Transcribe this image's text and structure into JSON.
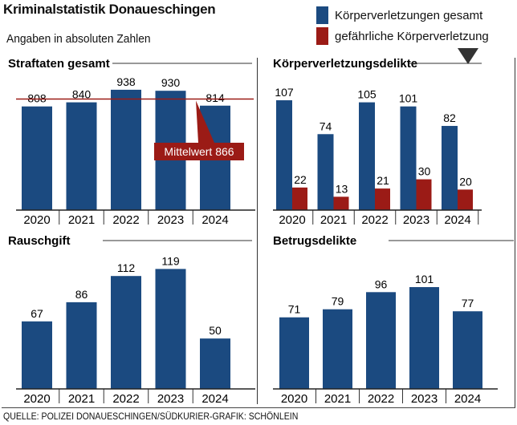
{
  "title": "Kriminalstatistik Donaueschingen",
  "subtitle": "Angaben in absoluten Zahlen",
  "legend": [
    {
      "label": "Körperverletzungen gesamt",
      "color": "#1b4a80"
    },
    {
      "label": "gefährliche Körperverletzung",
      "color": "#9b1b16"
    }
  ],
  "source": "QUELLE: POLIZEI DONAUESCHINGEN/SÜDKURIER-GRAFIK: SCHÖNLEIN",
  "colors": {
    "primary": "#1b4a80",
    "secondary": "#9b1b16",
    "mean_line": "#9b1b16"
  },
  "chart_data": [
    {
      "id": "straftaten",
      "type": "bar",
      "title": "Straftaten gesamt",
      "categories": [
        "2020",
        "2021",
        "2022",
        "2023",
        "2024"
      ],
      "series": [
        {
          "name": "Straftaten gesamt",
          "values": [
            808,
            840,
            938,
            930,
            814
          ]
        }
      ],
      "ylim": [
        0,
        1000
      ],
      "annotation": {
        "label": "Mittelwert 866",
        "value": 866
      }
    },
    {
      "id": "koerperverletzung",
      "type": "bar",
      "title": "Körperverletzungsdelikte",
      "categories": [
        "2020",
        "2021",
        "2022",
        "2023",
        "2024"
      ],
      "series": [
        {
          "name": "Körperverletzungen gesamt",
          "values": [
            107,
            74,
            105,
            101,
            82
          ]
        },
        {
          "name": "gefährliche Körperverletzung",
          "values": [
            22,
            13,
            21,
            30,
            20
          ]
        }
      ],
      "ylim": [
        0,
        125
      ]
    },
    {
      "id": "rauschgift",
      "type": "bar",
      "title": "Rauschgift",
      "categories": [
        "2020",
        "2021",
        "2022",
        "2023",
        "2024"
      ],
      "series": [
        {
          "name": "Rauschgift",
          "values": [
            67,
            86,
            112,
            119,
            50
          ]
        }
      ],
      "ylim": [
        0,
        140
      ]
    },
    {
      "id": "betrug",
      "type": "bar",
      "title": "Betrugsdelikte",
      "categories": [
        "2020",
        "2021",
        "2022",
        "2023",
        "2024"
      ],
      "series": [
        {
          "name": "Betrugsdelikte",
          "values": [
            71,
            79,
            96,
            101,
            77
          ]
        }
      ],
      "ylim": [
        0,
        140
      ]
    }
  ]
}
